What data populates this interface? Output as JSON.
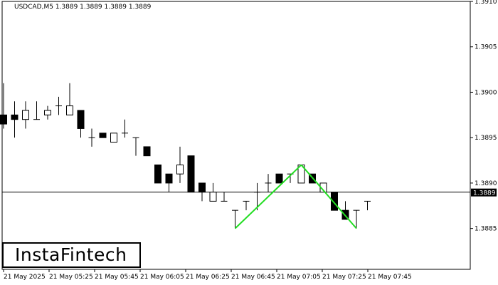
{
  "header": {
    "info": "USDCAD,M5  1.3889 1.3889 1.3889 1.3889"
  },
  "logo": {
    "text": "InstaFintech"
  },
  "colors": {
    "background": "#ffffff",
    "candle_bear": "#000000",
    "candle_bull": "#ffffff",
    "pattern": "#22dd22",
    "grid": "#000000"
  },
  "chart_data": {
    "type": "candlestick",
    "symbol": "USDCAD",
    "timeframe": "M5",
    "ylim": [
      1.38805,
      1.391
    ],
    "y_ticks": [
      "1.3910",
      "1.3905",
      "1.3900",
      "1.3895",
      "1.3890",
      "1.3885"
    ],
    "current_price": "1.3889",
    "x_ticks": [
      "21 May 2025",
      "21 May 05:25",
      "21 May 05:45",
      "21 May 06:05",
      "21 May 06:25",
      "21 May 06:45",
      "21 May 07:05",
      "21 May 07:25",
      "21 May 07:45"
    ],
    "candles": [
      {
        "o": 1.38975,
        "h": 1.3901,
        "l": 1.3896,
        "c": 1.38965
      },
      {
        "o": 1.38975,
        "h": 1.3899,
        "l": 1.3895,
        "c": 1.3897
      },
      {
        "o": 1.3897,
        "h": 1.3899,
        "l": 1.3896,
        "c": 1.3898
      },
      {
        "o": 1.3897,
        "h": 1.3899,
        "l": 1.3897,
        "c": 1.3897
      },
      {
        "o": 1.38975,
        "h": 1.38985,
        "l": 1.3897,
        "c": 1.3898
      },
      {
        "o": 1.38985,
        "h": 1.38995,
        "l": 1.38975,
        "c": 1.38985
      },
      {
        "o": 1.38975,
        "h": 1.3901,
        "l": 1.38975,
        "c": 1.38985
      },
      {
        "o": 1.3898,
        "h": 1.3898,
        "l": 1.3895,
        "c": 1.3896
      },
      {
        "o": 1.3895,
        "h": 1.3896,
        "l": 1.3894,
        "c": 1.3895
      },
      {
        "o": 1.38955,
        "h": 1.38955,
        "l": 1.3895,
        "c": 1.3895
      },
      {
        "o": 1.38945,
        "h": 1.38955,
        "l": 1.38945,
        "c": 1.38955
      },
      {
        "o": 1.38955,
        "h": 1.3897,
        "l": 1.3895,
        "c": 1.38955
      },
      {
        "o": 1.3895,
        "h": 1.3895,
        "l": 1.3893,
        "c": 1.3895
      },
      {
        "o": 1.3894,
        "h": 1.3894,
        "l": 1.3893,
        "c": 1.3893
      },
      {
        "o": 1.3892,
        "h": 1.3892,
        "l": 1.389,
        "c": 1.389
      },
      {
        "o": 1.3891,
        "h": 1.3891,
        "l": 1.3889,
        "c": 1.389
      },
      {
        "o": 1.3891,
        "h": 1.3894,
        "l": 1.389,
        "c": 1.3892
      },
      {
        "o": 1.3893,
        "h": 1.3893,
        "l": 1.3889,
        "c": 1.3889
      },
      {
        "o": 1.389,
        "h": 1.389,
        "l": 1.3888,
        "c": 1.3889
      },
      {
        "o": 1.3888,
        "h": 1.389,
        "l": 1.3888,
        "c": 1.3889
      },
      {
        "o": 1.3888,
        "h": 1.3889,
        "l": 1.3888,
        "c": 1.3888
      },
      {
        "o": 1.3887,
        "h": 1.3887,
        "l": 1.3885,
        "c": 1.3887
      },
      {
        "o": 1.3888,
        "h": 1.3888,
        "l": 1.3887,
        "c": 1.3888
      },
      {
        "o": 1.3889,
        "h": 1.389,
        "l": 1.3887,
        "c": 1.3889
      },
      {
        "o": 1.389,
        "h": 1.3891,
        "l": 1.3889,
        "c": 1.389
      },
      {
        "o": 1.3891,
        "h": 1.3891,
        "l": 1.389,
        "c": 1.389
      },
      {
        "o": 1.3891,
        "h": 1.3891,
        "l": 1.389,
        "c": 1.3891
      },
      {
        "o": 1.389,
        "h": 1.3892,
        "l": 1.389,
        "c": 1.3892
      },
      {
        "o": 1.3891,
        "h": 1.3891,
        "l": 1.389,
        "c": 1.389
      },
      {
        "o": 1.3889,
        "h": 1.389,
        "l": 1.3889,
        "c": 1.389
      },
      {
        "o": 1.3889,
        "h": 1.3889,
        "l": 1.3887,
        "c": 1.3887
      },
      {
        "o": 1.3887,
        "h": 1.3888,
        "l": 1.3886,
        "c": 1.3886
      },
      {
        "o": 1.3887,
        "h": 1.3887,
        "l": 1.3885,
        "c": 1.3887
      },
      {
        "o": 1.3888,
        "h": 1.3888,
        "l": 1.3887,
        "c": 1.3888
      }
    ],
    "pattern": {
      "name": "double bottom",
      "points": [
        {
          "candle": 21,
          "price": 1.3885
        },
        {
          "candle": 27,
          "price": 1.3892
        },
        {
          "candle": 32,
          "price": 1.3885
        }
      ]
    }
  }
}
